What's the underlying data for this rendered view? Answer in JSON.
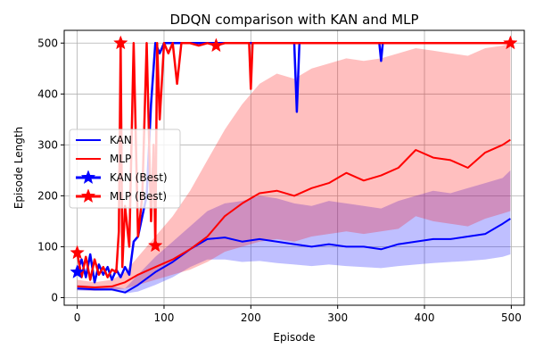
{
  "chart_data": {
    "type": "line",
    "title": "DDQN comparison with KAN and MLP",
    "xlabel": "Episode",
    "ylabel": "Episode Length",
    "xlim": [
      -15,
      515
    ],
    "ylim": [
      -15,
      525
    ],
    "xticks": [
      0,
      100,
      200,
      300,
      400,
      500
    ],
    "yticks": [
      0,
      100,
      200,
      300,
      400,
      500
    ],
    "grid": true,
    "legend_position": "center-left",
    "legend": [
      "KAN",
      "MLP",
      "KAN (Best)",
      "MLP (Best)"
    ],
    "colors": {
      "kan": "#0000ff",
      "mlp": "#ff0000"
    },
    "series": [
      {
        "name": "KAN",
        "x": [
          0,
          20,
          40,
          55,
          70,
          90,
          110,
          130,
          150,
          170,
          190,
          210,
          230,
          250,
          270,
          290,
          310,
          330,
          350,
          370,
          390,
          410,
          430,
          450,
          470,
          490,
          499
        ],
        "values": [
          18,
          16,
          16,
          10,
          25,
          50,
          70,
          95,
          115,
          118,
          110,
          115,
          110,
          105,
          100,
          105,
          100,
          100,
          95,
          105,
          110,
          115,
          115,
          120,
          125,
          145,
          155
        ],
        "band_lower": [
          14,
          13,
          13,
          8,
          12,
          25,
          40,
          60,
          75,
          75,
          70,
          72,
          68,
          65,
          62,
          65,
          62,
          60,
          58,
          62,
          65,
          68,
          70,
          72,
          75,
          80,
          85
        ],
        "band_upper": [
          25,
          22,
          22,
          18,
          45,
          80,
          110,
          140,
          170,
          185,
          190,
          200,
          195,
          185,
          180,
          190,
          185,
          180,
          175,
          190,
          200,
          210,
          205,
          215,
          225,
          235,
          250
        ]
      },
      {
        "name": "MLP",
        "x": [
          0,
          20,
          40,
          55,
          70,
          90,
          110,
          130,
          150,
          170,
          190,
          210,
          230,
          250,
          270,
          290,
          310,
          330,
          350,
          370,
          390,
          410,
          430,
          450,
          470,
          490,
          499
        ],
        "values": [
          22,
          20,
          22,
          30,
          45,
          60,
          75,
          95,
          120,
          160,
          185,
          205,
          210,
          200,
          215,
          225,
          245,
          230,
          240,
          255,
          290,
          275,
          270,
          255,
          285,
          300,
          310
        ],
        "band_lower": [
          15,
          14,
          15,
          18,
          25,
          35,
          45,
          55,
          70,
          90,
          100,
          110,
          115,
          110,
          120,
          125,
          130,
          125,
          130,
          135,
          160,
          150,
          145,
          140,
          155,
          165,
          170
        ],
        "band_upper": [
          35,
          30,
          35,
          50,
          80,
          120,
          160,
          210,
          270,
          330,
          380,
          420,
          440,
          430,
          450,
          460,
          470,
          465,
          470,
          480,
          490,
          485,
          480,
          475,
          490,
          495,
          500
        ]
      },
      {
        "name": "KAN (Best)",
        "x": [
          0,
          5,
          10,
          15,
          20,
          25,
          30,
          35,
          40,
          45,
          50,
          55,
          60,
          65,
          70,
          75,
          80,
          85,
          90,
          95,
          100,
          105,
          110,
          130,
          150,
          170,
          190,
          210,
          230,
          250,
          253,
          256,
          270,
          290,
          310,
          330,
          348,
          350,
          352,
          370,
          390,
          410,
          430,
          450,
          470,
          490,
          499
        ],
        "values": [
          50,
          75,
          40,
          85,
          30,
          65,
          45,
          60,
          35,
          55,
          40,
          60,
          45,
          110,
          120,
          160,
          200,
          380,
          500,
          480,
          500,
          500,
          500,
          500,
          500,
          500,
          500,
          500,
          500,
          500,
          365,
          500,
          500,
          500,
          500,
          500,
          500,
          465,
          500,
          500,
          500,
          500,
          500,
          500,
          500,
          500,
          500
        ]
      },
      {
        "name": "MLP (Best)",
        "x": [
          0,
          5,
          10,
          15,
          20,
          25,
          30,
          35,
          40,
          45,
          48,
          50,
          52,
          55,
          60,
          65,
          70,
          75,
          80,
          85,
          88,
          90,
          92,
          95,
          100,
          105,
          110,
          115,
          120,
          130,
          140,
          150,
          160,
          170,
          180,
          190,
          198,
          200,
          202,
          210,
          230,
          250,
          270,
          290,
          310,
          330,
          350,
          370,
          390,
          410,
          430,
          450,
          470,
          490,
          499
        ],
        "values": [
          88,
          40,
          80,
          35,
          75,
          45,
          60,
          40,
          55,
          50,
          130,
          500,
          60,
          180,
          100,
          500,
          120,
          200,
          500,
          150,
          300,
          102,
          500,
          350,
          500,
          480,
          500,
          420,
          500,
          500,
          495,
          500,
          495,
          500,
          500,
          500,
          500,
          410,
          500,
          500,
          500,
          500,
          500,
          500,
          500,
          500,
          500,
          500,
          500,
          500,
          500,
          500,
          500,
          500,
          500
        ],
        "markers": [
          [
            0,
            88
          ],
          [
            50,
            500
          ],
          [
            90,
            102
          ],
          [
            160,
            495
          ],
          [
            499,
            500
          ]
        ]
      }
    ]
  }
}
